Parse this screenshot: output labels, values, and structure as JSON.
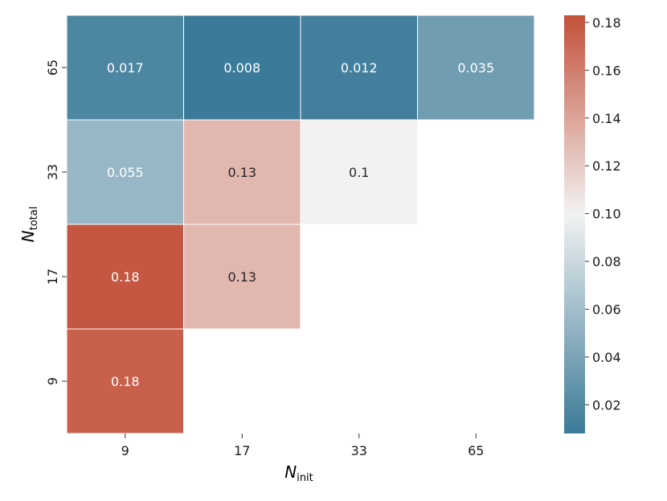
{
  "chart_data": {
    "type": "heatmap",
    "x_categories": [
      "9",
      "17",
      "33",
      "65"
    ],
    "y_categories": [
      "65",
      "33",
      "17",
      "9"
    ],
    "xlabel": {
      "main": "N",
      "sub": "init"
    },
    "ylabel": {
      "main": "N",
      "sub": "total"
    },
    "cells": [
      {
        "x": "9",
        "y": "65",
        "value": 0.017,
        "label": "0.017"
      },
      {
        "x": "17",
        "y": "65",
        "value": 0.008,
        "label": "0.008"
      },
      {
        "x": "33",
        "y": "65",
        "value": 0.012,
        "label": "0.012"
      },
      {
        "x": "65",
        "y": "65",
        "value": 0.035,
        "label": "0.035"
      },
      {
        "x": "9",
        "y": "33",
        "value": 0.055,
        "label": "0.055"
      },
      {
        "x": "17",
        "y": "33",
        "value": 0.13,
        "label": "0.13"
      },
      {
        "x": "33",
        "y": "33",
        "value": 0.1,
        "label": "0.1"
      },
      {
        "x": "9",
        "y": "17",
        "value": 0.18,
        "label": "0.18"
      },
      {
        "x": "17",
        "y": "17",
        "value": 0.13,
        "label": "0.13"
      },
      {
        "x": "9",
        "y": "9",
        "value": 0.175,
        "label": "0.18"
      }
    ],
    "colorbar": {
      "vmin": 0.008,
      "vmax": 0.183,
      "center": 0.1,
      "ticks": [
        0.02,
        0.04,
        0.06,
        0.08,
        0.1,
        0.12,
        0.14,
        0.16,
        0.18
      ],
      "tick_labels": [
        "0.02",
        "0.04",
        "0.06",
        "0.08",
        "0.10",
        "0.12",
        "0.14",
        "0.16",
        "0.18"
      ],
      "low_color": "#3b7a98",
      "mid_color": "#f2f2f2",
      "high_color": "#c3503a"
    }
  }
}
